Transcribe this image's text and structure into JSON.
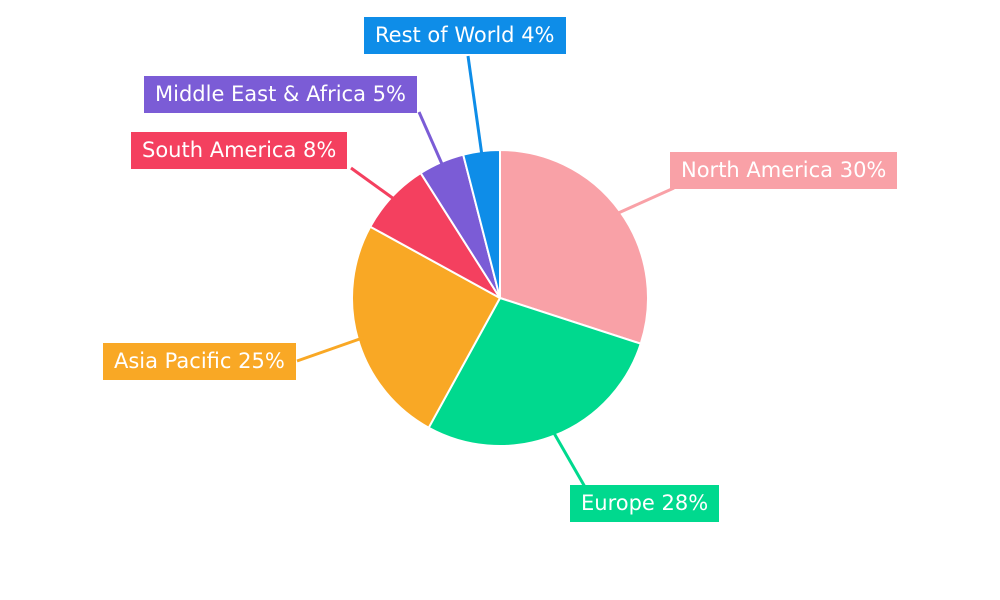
{
  "chart_data": {
    "type": "pie",
    "title": "",
    "legend_position": "none",
    "start_angle": "top",
    "direction": "clockwise",
    "label_text_color": "#ffffff",
    "background_color": "#ffffff",
    "slices": [
      {
        "label": "North America",
        "value": 30,
        "unit": "%",
        "label_text": "North America 30%",
        "color": "#F9A1A7"
      },
      {
        "label": "Europe",
        "value": 28,
        "unit": "%",
        "label_text": "Europe 28%",
        "color": "#00D98E"
      },
      {
        "label": "Asia Pacific",
        "value": 25,
        "unit": "%",
        "label_text": "Asia Pacific 25%",
        "color": "#F9A825"
      },
      {
        "label": "South America",
        "value": 8,
        "unit": "%",
        "label_text": "South America 8%",
        "color": "#F4405F"
      },
      {
        "label": "Middle East & Africa",
        "value": 5,
        "unit": "%",
        "label_text": "Middle East & Africa 5%",
        "color": "#7B5CD6"
      },
      {
        "label": "Rest of World",
        "value": 4,
        "unit": "%",
        "label_text": "Rest of World 4%",
        "color": "#0E8DE8"
      }
    ]
  }
}
